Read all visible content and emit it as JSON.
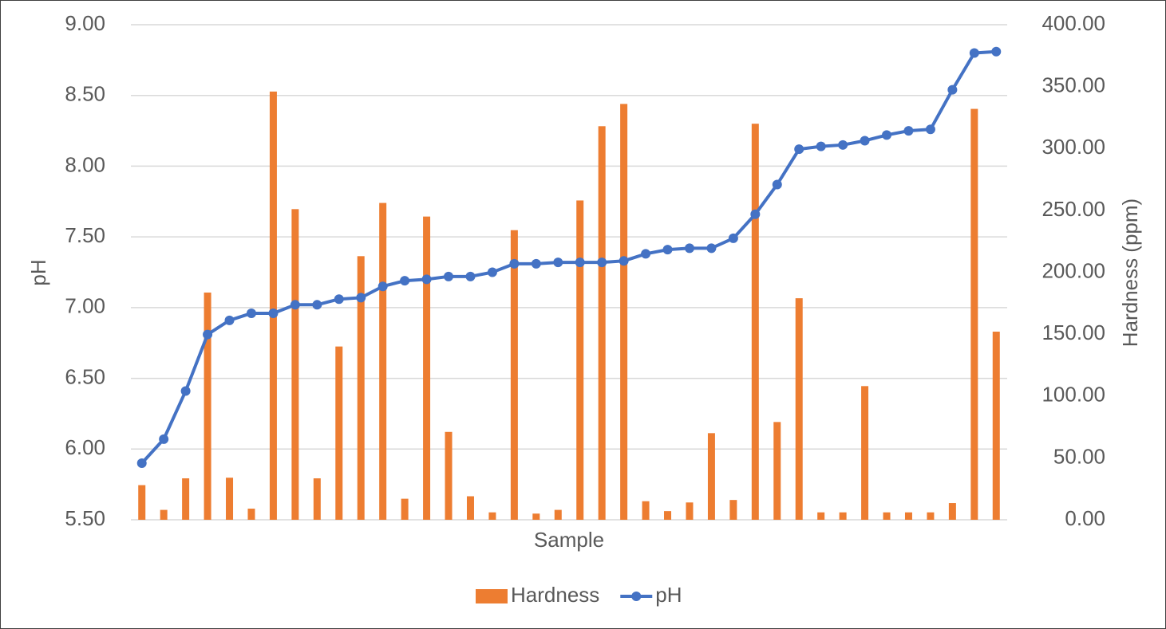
{
  "chart_data": {
    "type": "bar-line",
    "categories": [
      null,
      null,
      null,
      null,
      null,
      null,
      null,
      null,
      null,
      null,
      null,
      null,
      null,
      null,
      null,
      null,
      null,
      null,
      null,
      null,
      null,
      null,
      null,
      null,
      null,
      null,
      null,
      null,
      null,
      null,
      null,
      null,
      null,
      null,
      null,
      null,
      null,
      null,
      null,
      null
    ],
    "series": [
      {
        "name": "Hardness",
        "type": "bar",
        "axis": "y2",
        "color": "#ed7d31",
        "values": [
          28,
          8,
          33.5,
          183.6,
          34,
          9,
          346,
          251,
          33.5,
          140,
          213,
          256,
          17,
          245,
          71,
          19,
          6,
          234,
          5,
          8,
          258,
          318,
          336,
          15,
          7,
          14,
          70,
          16,
          320,
          79,
          179,
          6,
          6,
          108,
          6,
          6,
          6,
          13.5,
          332,
          152
        ]
      },
      {
        "name": "pH",
        "type": "line",
        "axis": "y",
        "color": "#4472c4",
        "values": [
          5.9,
          6.07,
          6.41,
          6.81,
          6.91,
          6.96,
          6.96,
          7.02,
          7.02,
          7.06,
          7.07,
          7.15,
          7.19,
          7.2,
          7.22,
          7.22,
          7.25,
          7.31,
          7.31,
          7.32,
          7.32,
          7.32,
          7.33,
          7.38,
          7.41,
          7.42,
          7.42,
          7.49,
          7.66,
          7.87,
          8.12,
          8.14,
          8.15,
          8.18,
          8.22,
          8.25,
          8.26,
          8.54,
          8.8,
          8.81
        ]
      }
    ],
    "x_label": "Sample",
    "y_label": "pH",
    "y2_label": "Hardness (ppm)",
    "ylim": [
      5.5,
      9.0
    ],
    "yticks": [
      {
        "value": 5.5,
        "label": "5.50"
      },
      {
        "value": 6,
        "label": "6.00"
      },
      {
        "value": 6.5,
        "label": "6.50"
      },
      {
        "value": 7,
        "label": "7.00"
      },
      {
        "value": 7.5,
        "label": "7.50"
      },
      {
        "value": 8,
        "label": "8.00"
      },
      {
        "value": 8.5,
        "label": "8.50"
      },
      {
        "value": 9,
        "label": "9.00"
      }
    ],
    "y2lim": [
      0,
      400
    ],
    "y2ticks": [
      {
        "value": 0,
        "label": "0.00"
      },
      {
        "value": 50,
        "label": "50.00"
      },
      {
        "value": 100,
        "label": "100.00"
      },
      {
        "value": 150,
        "label": "150.00"
      },
      {
        "value": 200,
        "label": "200.00"
      },
      {
        "value": 250,
        "label": "250.00"
      },
      {
        "value": 300,
        "label": "300.00"
      },
      {
        "value": 350,
        "label": "350.00"
      },
      {
        "value": 400,
        "label": "400.00"
      }
    ],
    "grid": true,
    "legend": "bottom"
  }
}
